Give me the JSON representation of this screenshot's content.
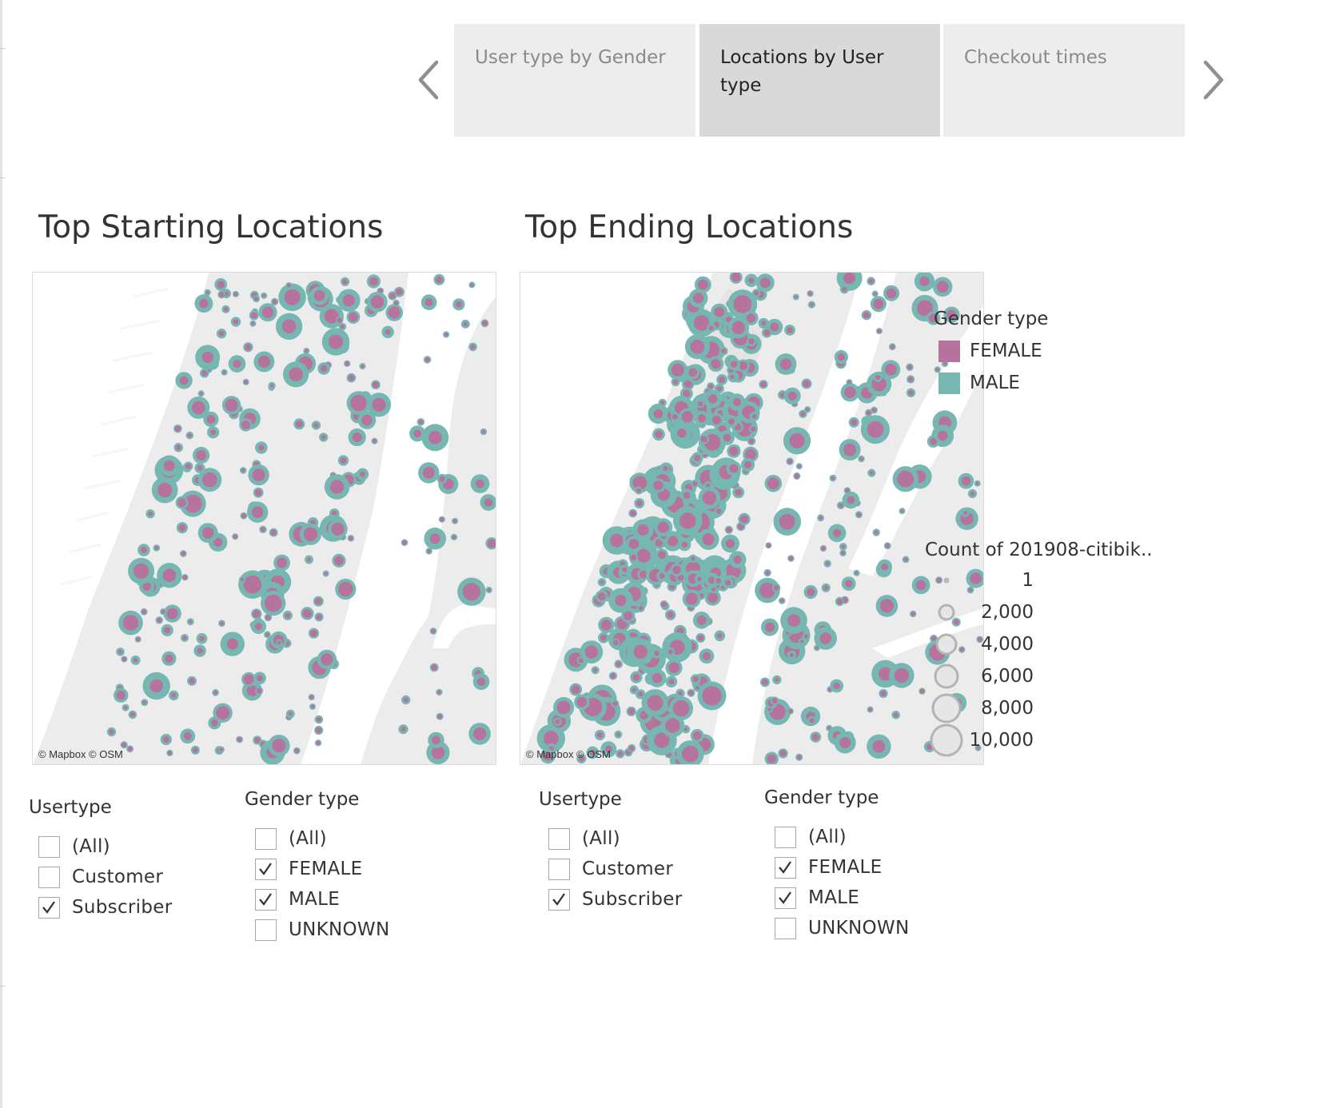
{
  "story": {
    "points": [
      {
        "label": "User type by Gender",
        "active": false
      },
      {
        "label": "Locations by User type",
        "active": true
      },
      {
        "label": "Checkout times",
        "active": false
      }
    ]
  },
  "start_map": {
    "title": "Top Starting Locations",
    "attribution": "© Mapbox © OSM"
  },
  "end_map": {
    "title": "Top Ending Locations",
    "attribution": "© Mapbox © OSM"
  },
  "gender_legend": {
    "title": "Gender type",
    "items": [
      {
        "label": "FEMALE",
        "color": "#b5739d"
      },
      {
        "label": "MALE",
        "color": "#76b7b2"
      }
    ]
  },
  "size_legend": {
    "title": "Count of 201908-citibik..",
    "items": [
      "1",
      "2,000",
      "4,000",
      "6,000",
      "8,000",
      "10,000"
    ]
  },
  "filters": {
    "start_usertype": {
      "title": "Usertype",
      "options": [
        {
          "label": "(All)",
          "checked": false
        },
        {
          "label": "Customer",
          "checked": false
        },
        {
          "label": "Subscriber",
          "checked": true
        }
      ]
    },
    "start_gender": {
      "title": "Gender type",
      "options": [
        {
          "label": "(All)",
          "checked": false
        },
        {
          "label": "FEMALE",
          "checked": true
        },
        {
          "label": "MALE",
          "checked": true
        },
        {
          "label": "UNKNOWN",
          "checked": false
        }
      ]
    },
    "end_usertype": {
      "title": "Usertype",
      "options": [
        {
          "label": "(All)",
          "checked": false
        },
        {
          "label": "Customer",
          "checked": false
        },
        {
          "label": "Subscriber",
          "checked": true
        }
      ]
    },
    "end_gender": {
      "title": "Gender type",
      "options": [
        {
          "label": "(All)",
          "checked": false
        },
        {
          "label": "FEMALE",
          "checked": true
        },
        {
          "label": "MALE",
          "checked": true
        },
        {
          "label": "UNKNOWN",
          "checked": false
        }
      ]
    }
  }
}
